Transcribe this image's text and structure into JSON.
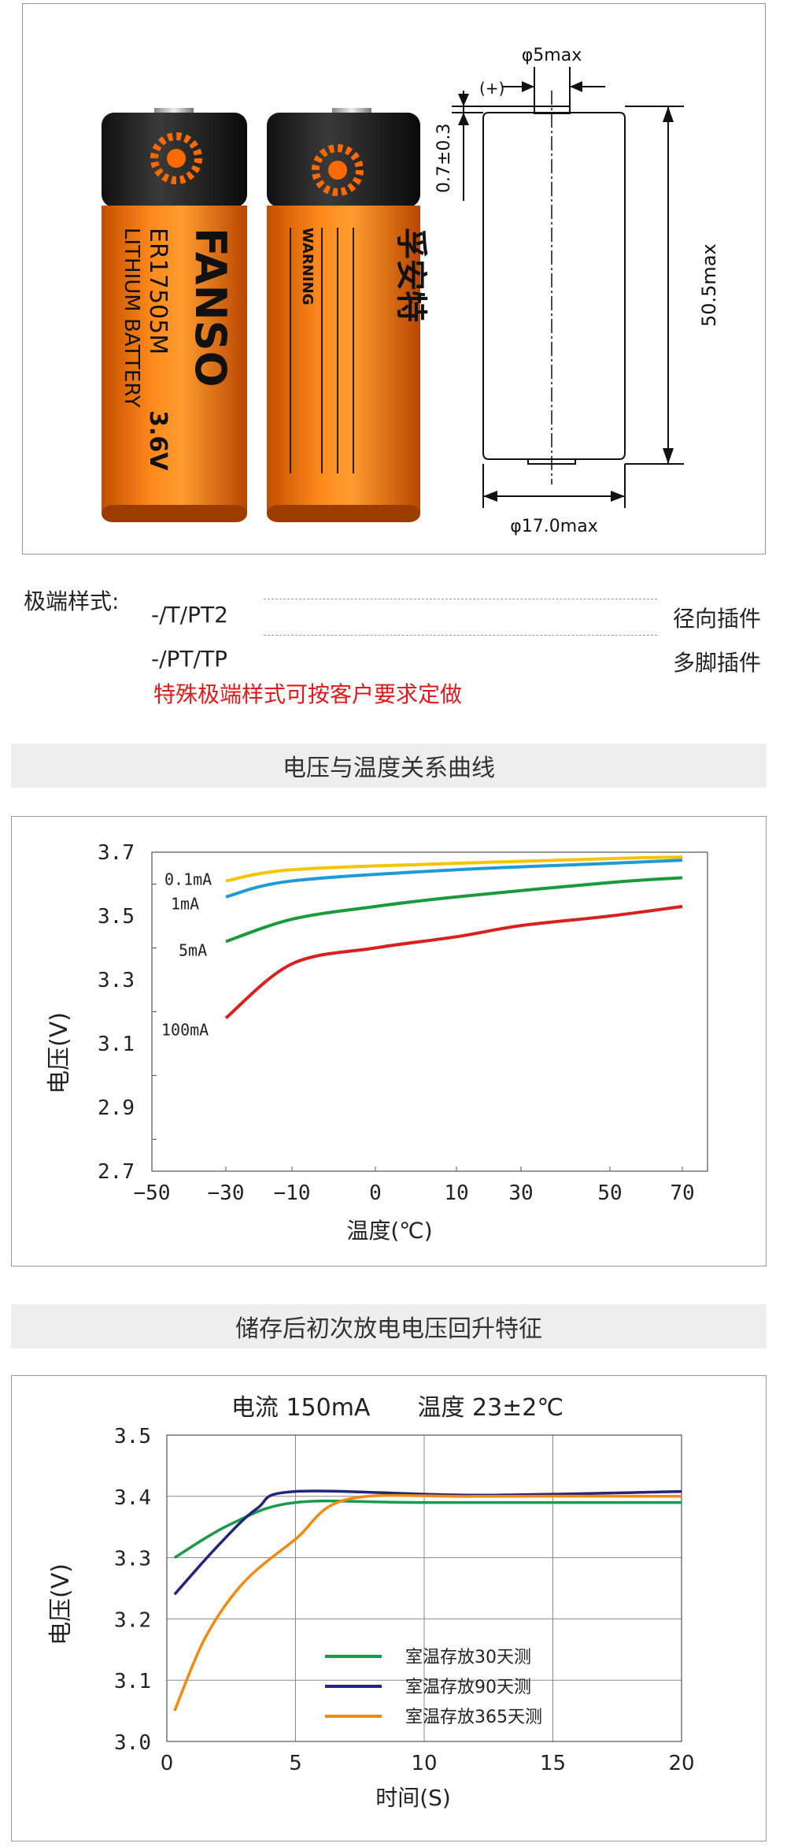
{
  "product": {
    "brand_logo_text": "FANSO",
    "model": "ER17505M",
    "voltage": "3.6V",
    "type": "LITHIUM BATTERY",
    "chinese_brand": "孚安特",
    "warning": "WARNING"
  },
  "dimensions": {
    "terminal_width": "φ5max",
    "polarity": "(+)",
    "terminal_height": "0.7±0.3",
    "height": "50.5max",
    "diameter": "φ17.0max"
  },
  "terminals": {
    "label": "极端样式:",
    "items": [
      {
        "code": "-/T/PT2",
        "desc": "径向插件"
      },
      {
        "code": "-/PT/TP",
        "desc": "多脚插件"
      }
    ],
    "note": "特殊极端样式可按客户要求定做"
  },
  "section1": {
    "title": "电压与温度关系曲线"
  },
  "section2": {
    "title": "储存后初次放电电压回升特征"
  },
  "chart_data": [
    {
      "type": "line",
      "title": "",
      "xlabel": "温度(℃)",
      "ylabel": "电压(V)",
      "x_ticks": [
        "−50",
        "−30",
        "−10",
        "0",
        "10",
        "30",
        "50",
        "70"
      ],
      "y_ticks": [
        "3.7",
        "3.5",
        "3.3",
        "3.1",
        "2.9",
        "2.7"
      ],
      "ylim": [
        2.7,
        3.7
      ],
      "grid": false,
      "series": [
        {
          "name": "0.1mA",
          "color": "#f5c400",
          "points": [
            [
              -30,
              3.61
            ],
            [
              -10,
              3.645
            ],
            [
              10,
              3.665
            ],
            [
              50,
              3.68
            ],
            [
              70,
              3.685
            ]
          ]
        },
        {
          "name": "1mA",
          "color": "#1e9ad6",
          "points": [
            [
              -30,
              3.56
            ],
            [
              -10,
              3.61
            ],
            [
              10,
              3.645
            ],
            [
              50,
              3.665
            ],
            [
              70,
              3.675
            ]
          ]
        },
        {
          "name": "5mA",
          "color": "#1a9a3c",
          "points": [
            [
              -30,
              3.42
            ],
            [
              -10,
              3.49
            ],
            [
              0,
              3.53
            ],
            [
              10,
              3.56
            ],
            [
              50,
              3.605
            ],
            [
              70,
              3.62
            ]
          ]
        },
        {
          "name": "100mA",
          "color": "#d9201e",
          "points": [
            [
              -30,
              3.18
            ],
            [
              -10,
              3.35
            ],
            [
              0,
              3.4
            ],
            [
              10,
              3.435
            ],
            [
              30,
              3.47
            ],
            [
              50,
              3.5
            ],
            [
              70,
              3.53
            ]
          ]
        }
      ]
    },
    {
      "type": "line",
      "title": "电流 150mA　　温度 23±2℃",
      "xlabel": "时间(S)",
      "ylabel": "电压(V)",
      "x_ticks": [
        "0",
        "5",
        "10",
        "15",
        "20"
      ],
      "y_ticks": [
        "3.5",
        "3.4",
        "3.3",
        "3.2",
        "3.1",
        "3.0"
      ],
      "xlim": [
        0,
        20
      ],
      "ylim": [
        3.0,
        3.5
      ],
      "grid": true,
      "legend_position": "bottom-center",
      "series": [
        {
          "name": "室温存放30天测",
          "color": "#1a9a4a",
          "points": [
            [
              0.3,
              3.3
            ],
            [
              2.5,
              3.355
            ],
            [
              5,
              3.39
            ],
            [
              10,
              3.39
            ],
            [
              20,
              3.39
            ]
          ]
        },
        {
          "name": "室温存放90天测",
          "color": "#23247a",
          "points": [
            [
              0.3,
              3.24
            ],
            [
              2,
              3.32
            ],
            [
              3.5,
              3.38
            ],
            [
              5,
              3.408
            ],
            [
              12,
              3.402
            ],
            [
              20,
              3.408
            ]
          ]
        },
        {
          "name": "室温存放365天测",
          "color": "#f08a12",
          "points": [
            [
              0.3,
              3.05
            ],
            [
              1.5,
              3.17
            ],
            [
              3,
              3.26
            ],
            [
              5,
              3.33
            ],
            [
              7,
              3.395
            ],
            [
              12,
              3.4
            ],
            [
              20,
              3.4
            ]
          ]
        }
      ]
    }
  ]
}
